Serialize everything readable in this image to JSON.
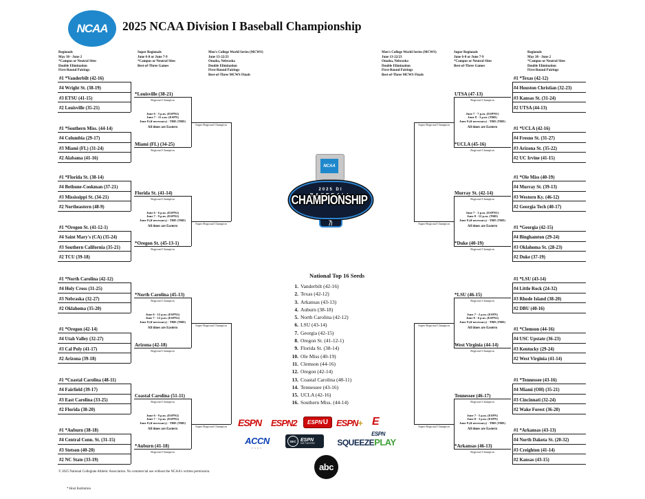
{
  "header": {
    "title": "2025 NCAA Division I Baseball Championship",
    "ncaa_logo": "NCAA"
  },
  "info_blocks": {
    "regionals": [
      "Regionals",
      "May 30 - June 2",
      "*Campus or Neutral Sites",
      "Double Elimination",
      "First-Round Pairings"
    ],
    "super_regionals": [
      "Super Regionals",
      "June 6-8 or June 7-9",
      "*Campus or Neutral Sites",
      "Best-of-Three Games"
    ],
    "mcws": [
      "Men's College World Series (MCWS)",
      "June 13-22/23",
      "Omaha, Nebraska",
      "Double Elimination",
      "First-Round Pairings",
      "Best-of-Three MCWS Finals"
    ]
  },
  "labels": {
    "regional_champion": "Regional Champion",
    "super_regional_champion": "Super Regional Champion",
    "all_times": "All times are Eastern"
  },
  "bracket": {
    "left": [
      {
        "top": {
          "teams": [
            "#1 *Vanderbilt (42-16)",
            "#4 Wright St. (38-19)",
            "#3 ETSU (41-15)",
            "#2 Louisville (35-21)"
          ],
          "champion": "*Louisville (38-21)"
        },
        "bottom": {
          "teams": [
            "#1 *Southern Miss. (44-14)",
            "#4 Columbia (29-17)",
            "#3 Miami (FL) (31-24)",
            "#2 Alabama (41-16)"
          ],
          "champion": "Miami (FL) (34-25)"
        },
        "schedule": [
          "June 6 - 3 p.m. (ESPN2)",
          "June 7 - 11 a.m. (ESPN)",
          "June 8 (if necessary) - TBD (TBD)"
        ]
      },
      {
        "top": {
          "teams": [
            "#1 *Florida St. (38-14)",
            "#4 Bethune-Cookman (37-21)",
            "#3 Mississippi St. (34-21)",
            "#2 Northeastern (48-9)"
          ],
          "champion": "Florida St. (41-14)"
        },
        "bottom": {
          "teams": [
            "#1 *Oregon St. (41-12-1)",
            "#4 Saint Mary's (CA) (35-24)",
            "#3 Southern California (35-21)",
            "#2 TCU (39-18)"
          ],
          "champion": "*Oregon St. (45-13-1)"
        },
        "schedule": [
          "June 6 - 6 p.m. (ESPN2)",
          "June 7 - 9 p.m. (ESPN2)",
          "June 8 (if necessary) - TBD (TBD)"
        ]
      },
      {
        "top": {
          "teams": [
            "#1 *North Carolina (42-12)",
            "#4 Holy Cross (31-25)",
            "#3 Nebraska (32-27)",
            "#2 Oklahoma (35-20)"
          ],
          "champion": "*North Carolina (45-13)"
        },
        "bottom": {
          "teams": [
            "#1 *Oregon (42-14)",
            "#4 Utah Valley (32-27)",
            "#3 Cal Poly (41-17)",
            "#2 Arizona (39-18)"
          ],
          "champion": "Arizona (42-18)"
        },
        "schedule": [
          "June 6 - 12 p.m. (ESPN2)",
          "June 7 - 12 p.m. (ESPN2)",
          "June 8 (if necessary) - TBD (TBD)"
        ]
      },
      {
        "top": {
          "teams": [
            "#1 *Coastal Carolina (48-11)",
            "#4 Fairfield (39-17)",
            "#3 East Carolina (33-25)",
            "#2 Florida (38-20)"
          ],
          "champion": "Coastal Carolina (51-11)"
        },
        "bottom": {
          "teams": [
            "#1 *Auburn (38-18)",
            "#4 Central Conn. St. (31-15)",
            "#3 Stetson (40-20)",
            "#2 NC State (33-19)"
          ],
          "champion": "*Auburn (41-18)"
        },
        "schedule": [
          "June 6 - 9 p.m. (ESPN2)",
          "June 7 - 3 p.m. (ESPN2)",
          "June 8 (if necessary) - TBD (TBD)"
        ]
      }
    ],
    "right": [
      {
        "top": {
          "teams": [
            "#1 *Texas (42-12)",
            "#4 Houston Christian (32-23)",
            "#3 Kansas St. (31-24)",
            "#2 UTSA (44-13)"
          ],
          "champion": "UTSA (47-13)"
        },
        "bottom": {
          "teams": [
            "#1 *UCLA (42-16)",
            "#4 Fresno St. (31-27)",
            "#3 Arizona St. (35-22)",
            "#2 UC Irvine (41-15)"
          ],
          "champion": "*UCLA (45-16)"
        },
        "schedule": [
          "June 7 - 7 p.m. (ESPNU)",
          "June 8 - 3 p.m. (TBD)",
          "June 9 (if necessary) - TBD (TBD)"
        ]
      },
      {
        "top": {
          "teams": [
            "#1 *Ole Miss (40-19)",
            "#4 Murray St. (39-13)",
            "#3 Western Ky. (46-12)",
            "#2 Georgia Tech (40-17)"
          ],
          "champion": "Murray St. (42-14)"
        },
        "bottom": {
          "teams": [
            "#1 *Georgia (42-15)",
            "#4 Binghamton (29-24)",
            "#3 Oklahoma St. (28-23)",
            "#2 Duke (37-19)"
          ],
          "champion": "*Duke (40-19)"
        },
        "schedule": [
          "June 7 - 1 p.m. (ESPNU)",
          "June 8 - 12 p.m. (TBD)",
          "June 9 (if necessary) - TBD (TBD)"
        ]
      },
      {
        "top": {
          "teams": [
            "#1 *LSU (43-14)",
            "#4 Little Rock (24-32)",
            "#3 Rhode Island (38-20)",
            "#2 DBU (40-16)"
          ],
          "champion": "*LSU (46-15)"
        },
        "bottom": {
          "teams": [
            "#1 *Clemson (44-16)",
            "#4 USC Upstate (36-23)",
            "#3 Kentucky (29-24)",
            "#2 West Virginia (41-14)"
          ],
          "champion": "West Virginia (44-14)"
        },
        "schedule": [
          "June 7 - 2 p.m. (ESPN)",
          "June 8 - 6 p.m. (ESPN2)",
          "June 9 (if necessary) - TBD (TBD)"
        ]
      },
      {
        "top": {
          "teams": [
            "#1 *Tennessee (43-16)",
            "#4 Miami (OH) (35-21)",
            "#3 Cincinnati (32-24)",
            "#2 Wake Forest (36-20)"
          ],
          "champion": "Tennessee (46-17)"
        },
        "bottom": {
          "teams": [
            "#1 *Arkansas (43-13)",
            "#4 North Dakota St. (20-32)",
            "#3 Creighton (41-14)",
            "#2 Kansas (43-15)"
          ],
          "champion": "*Arkansas (46-13)"
        },
        "schedule": [
          "June 7 - 5 p.m. (ESPN)",
          "June 8 - 3 p.m. (ESPN)",
          "June 9 (if necessary) - TBD (TBD)"
        ]
      }
    ]
  },
  "center_logo": {
    "ncaa": "NCAA",
    "line1": "2025 DI",
    "line2": "BASEBALL",
    "line3": "CHAMPIONSHIP"
  },
  "top16": {
    "title": "National Top 16 Seeds",
    "seeds": [
      "Vanderbilt (42-16)",
      "Texas (42-12)",
      "Arkansas (43-13)",
      "Auburn (38-18)",
      "North Carolina (42-12)",
      "LSU (43-14)",
      "Georgia (42-15)",
      "Oregon St. (41-12-1)",
      "Florida St. (38-14)",
      "Ole Miss (40-19)",
      "Clemson (44-16)",
      "Oregon (42-14)",
      "Coastal Carolina (48-11)",
      "Tennessee (43-16)",
      "UCLA (42-16)",
      "Southern Miss. (44-14)"
    ]
  },
  "broadcast": {
    "espn": "ESPN",
    "espn2_base": "ESPN",
    "espn2_num": "2",
    "espnu_base": "ESPN",
    "espnu_letter": "U",
    "espn_plus_base": "ESPN",
    "espn_plus_sign": "+",
    "deportes_letter": "E",
    "accn": "ACCN",
    "accn_sub": "espn",
    "sec_circle": "SEC",
    "sec_espn": "ESPN",
    "sec_network": "NETWORK",
    "squeeze_espn": "ESPN",
    "squeeze_word": "SQUEEZE",
    "play_word": "PLAY",
    "abc": "abc"
  },
  "footer": {
    "copyright": "© 2025 National Collegiate Athletic Association. No commercial use without the NCAA's written permission.",
    "host_note": "* Host Institution"
  },
  "colors": {
    "ncaa_blue": "#1f88cc",
    "logo_navy": "#0f1c33",
    "logo_ring_blue": "#2f86d4",
    "espn_red": "#cf0a0a",
    "accn_blue": "#0b3fb3",
    "play_green": "#3fa037",
    "line": "#1a1a1a"
  }
}
